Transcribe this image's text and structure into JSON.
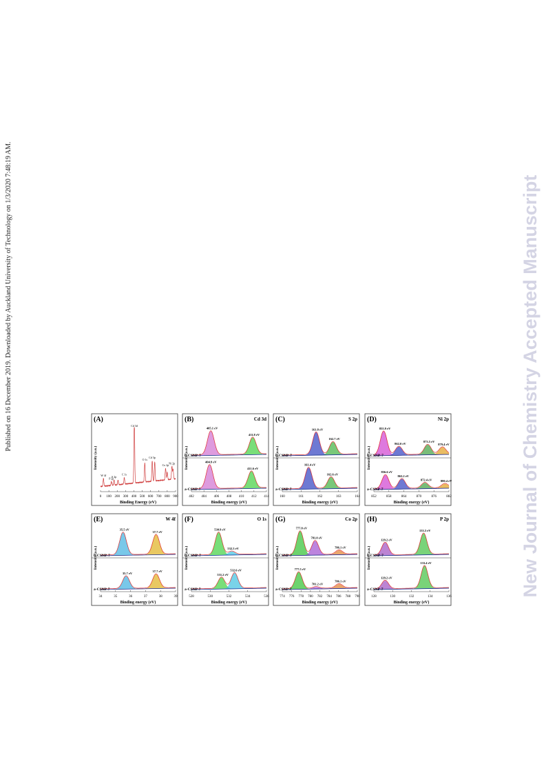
{
  "margin_note": "Published on 16 December 2019. Downloaded by Auckland University of Technology on 1/3/2020 7:48:19 AM.",
  "watermark": "New Journal of Chemistry Accepted Manuscript",
  "figure": {
    "panels": [
      {
        "label": "(A)",
        "y_label": "Intensity (a.u.)",
        "x_label": "Binding Energy (eV)",
        "x_ticks": [
          0,
          100,
          200,
          300,
          400,
          500,
          600,
          700,
          800,
          900
        ],
        "peak_labels": [
          "W 4f",
          "P 2p",
          "S 2p",
          "C 1s",
          "Cd 3d",
          "O 1s",
          "Cd 3p",
          "Co 2p",
          "Ni 2p"
        ]
      },
      {
        "label": "(B)",
        "element": "Cd 3d",
        "y_label": "Intensity (a.u.)",
        "x_label": "Binding energy (eV)",
        "x_ticks": [
          402,
          404,
          406,
          408,
          410,
          412,
          414
        ],
        "spectra": [
          {
            "sample": "b-CSNP-7",
            "peaks": [
              "405.1 eV",
              "411.8 eV"
            ]
          },
          {
            "sample": "a-CSNP-7",
            "peaks": [
              "404.9 eV",
              "411.6 eV"
            ]
          }
        ]
      },
      {
        "label": "(C)",
        "element": "S 2p",
        "y_label": "Intensity (a.u.)",
        "x_label": "Binding energy (eV)",
        "x_ticks": [
          160,
          161,
          162,
          163,
          164
        ],
        "spectra": [
          {
            "sample": "b-CSNP-7",
            "peaks": [
              "161.8 eV",
              "162.7 eV"
            ]
          },
          {
            "sample": "a-CSNP-7",
            "peaks": [
              "161.4 eV",
              "162.6 eV"
            ]
          }
        ]
      },
      {
        "label": "(D)",
        "element": "Ni 2p",
        "y_label": "Intensity (a.u.)",
        "x_label": "Binding energy (eV)",
        "x_ticks": [
          852,
          858,
          864,
          870,
          876,
          882
        ],
        "spectra": [
          {
            "sample": "b-CSNP-7",
            "peaks": [
              "855.9 eV",
              "862.0 eV",
              "873.5 eV",
              "879.4 eV"
            ]
          },
          {
            "sample": "a-CSNP-7",
            "peaks": [
              "856.6 eV",
              "863.2 eV",
              "872.4 eV",
              "880.4 eV"
            ]
          }
        ]
      },
      {
        "label": "(E)",
        "element": "W 4f",
        "y_label": "Intensity (a.u.)",
        "x_label": "Binding energy (eV)",
        "x_ticks": [
          34,
          35,
          36,
          37,
          38,
          39
        ],
        "spectra": [
          {
            "sample": "b-CSNP-7",
            "peaks": [
              "35.5 eV",
              "37.7 eV"
            ]
          },
          {
            "sample": "a-CSNP-7",
            "peaks": [
              "35.7 eV",
              "37.7 eV"
            ]
          }
        ]
      },
      {
        "label": "(F)",
        "element": "O 1s",
        "y_label": "Intensity (a.u.)",
        "x_label": "Binding energy (eV)",
        "x_ticks": [
          528,
          530,
          532,
          534,
          536
        ],
        "spectra": [
          {
            "sample": "b-CSNP-7",
            "peaks": [
              "530.9 eV",
              "532.3 eV"
            ]
          },
          {
            "sample": "a-CSNP-7",
            "peaks": [
              "531.2 eV",
              "532.6 eV"
            ]
          }
        ]
      },
      {
        "label": "(G)",
        "element": "Co 2p",
        "y_label": "Intensity (a.u.)",
        "x_label": "Binding energy (eV)",
        "x_ticks": [
          774,
          776,
          778,
          780,
          782,
          784,
          786,
          788,
          790
        ],
        "spectra": [
          {
            "sample": "b-CSNP-7",
            "peaks": [
              "777.8 eV",
              "781.0 eV",
              "786.1 eV"
            ]
          },
          {
            "sample": "a-CSNP-7",
            "peaks": [
              "777.5 eV",
              "781.2 eV",
              "786.1 eV"
            ]
          }
        ]
      },
      {
        "label": "(H)",
        "element": "P 2p",
        "y_label": "Intensity (a.u.)",
        "x_label": "Binding energy (eV)",
        "x_ticks": [
          128,
          130,
          132,
          134,
          136
        ],
        "spectra": [
          {
            "sample": "b-CSNP-7",
            "peaks": [
              "129.2 eV",
              "133.3 eV"
            ]
          },
          {
            "sample": "a-CSNP-7",
            "peaks": [
              "129.2 eV",
              "133.4 eV"
            ]
          }
        ]
      }
    ]
  }
}
